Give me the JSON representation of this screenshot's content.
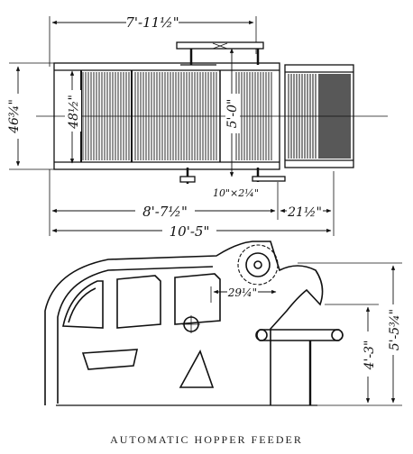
{
  "figure": {
    "caption": "AUTOMATIC HOPPER FEEDER",
    "dimensions": {
      "top_width": "7'-11½\"",
      "overall_height_left": "46¾\"",
      "belt_width": "48½\"",
      "center_dim": "5'-0\"",
      "small_section": "10\"×2¼\"",
      "main_length": "8'-7½\"",
      "right_length": "21½\"",
      "total_length": "10'-5\"",
      "offset": "29¼\"",
      "inner_height": "4'-3\"",
      "outer_height": "5'-5¾\""
    }
  }
}
